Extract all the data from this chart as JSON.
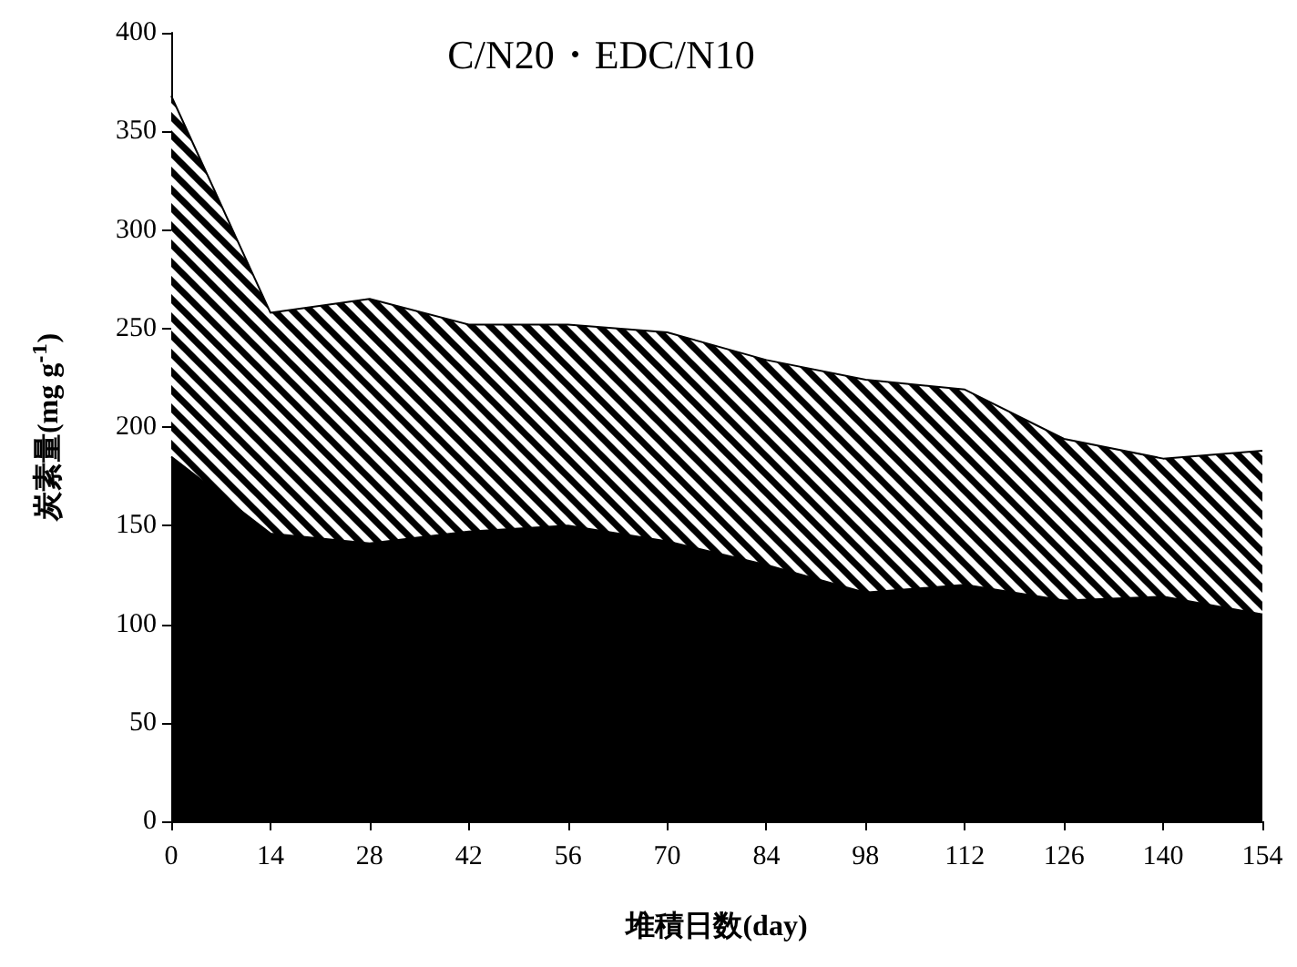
{
  "chart_data": {
    "type": "area",
    "title": "C/N20・EDC/N10",
    "xlabel": "堆積日数(day)",
    "ylabel": "炭素量(mg g$^{-1}$)",
    "x": [
      0,
      14,
      28,
      42,
      56,
      70,
      84,
      98,
      112,
      126,
      140,
      154
    ],
    "stacked": true,
    "series": [
      {
        "color": "#000000",
        "values": [
          185,
          146,
          141,
          147,
          150,
          142,
          130,
          116,
          120,
          112,
          114,
          105
        ]
      },
      {
        "color": "#000000",
        "values": [
          183,
          112,
          124,
          105,
          102,
          106,
          104,
          108,
          99,
          82,
          70,
          83
        ]
      }
    ],
    "xlim": [
      0,
      154
    ],
    "xticks": [
      0,
      14,
      28,
      42,
      56,
      70,
      84,
      98,
      112,
      126,
      140,
      154
    ],
    "ylim": [
      0,
      400
    ],
    "yticks": [
      0,
      50,
      100,
      150,
      200,
      250,
      300,
      350,
      400
    ],
    "grid": false
  }
}
